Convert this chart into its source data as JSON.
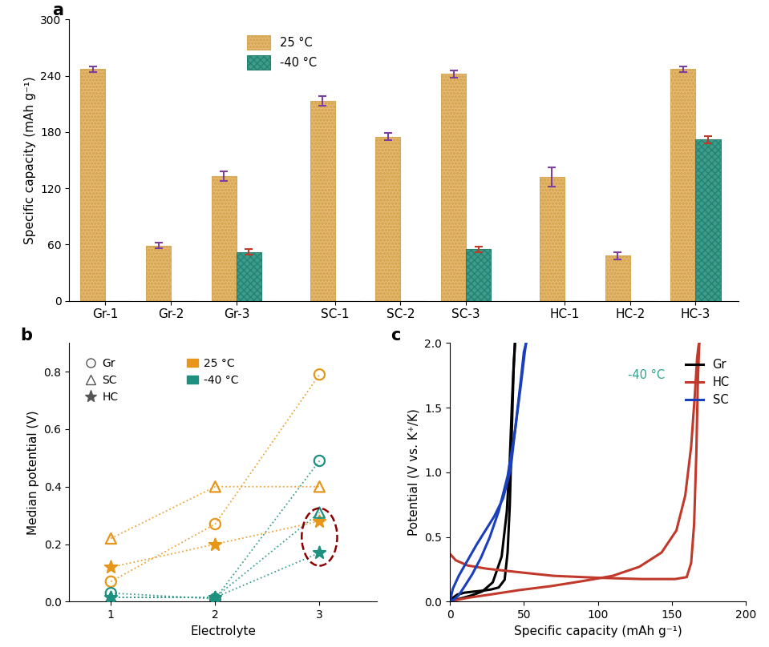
{
  "panel_a": {
    "categories": [
      "Gr-1",
      "Gr-2",
      "Gr-3",
      "SC-1",
      "SC-2",
      "SC-3",
      "HC-1",
      "HC-2",
      "HC-3"
    ],
    "bar25_heights": [
      247,
      59,
      133,
      213,
      175,
      242,
      132,
      48,
      247
    ],
    "bar40_heights": [
      0,
      0,
      52,
      0,
      0,
      55,
      0,
      0,
      172
    ],
    "bar25_errors": [
      3,
      3,
      5,
      5,
      4,
      4,
      10,
      4,
      3
    ],
    "bar40_errors": [
      0,
      0,
      3,
      0,
      0,
      3,
      0,
      0,
      4
    ],
    "color_25": "#E8B870",
    "color_40": "#3A9E8D",
    "error_color_25": "#7B3FA0",
    "error_color_40": "#C0392B",
    "ylabel": "Specific capacity (mAh g⁻¹)",
    "ylim": [
      0,
      300
    ],
    "yticks": [
      0,
      60,
      120,
      180,
      240,
      300
    ]
  },
  "panel_b": {
    "orange_color": "#E8961A",
    "teal_color": "#1E9080",
    "Gr_25": [
      0.07,
      0.27,
      0.79
    ],
    "SC_25": [
      0.22,
      0.4,
      0.4
    ],
    "HC_25": [
      0.12,
      0.2,
      0.28
    ],
    "Gr_40": [
      0.03,
      0.01,
      0.49
    ],
    "SC_40": [
      0.015,
      0.015,
      0.31
    ],
    "HC_40": [
      0.015,
      0.015,
      0.17
    ],
    "electrolytes": [
      1,
      2,
      3
    ],
    "ylabel": "Median potential (V)",
    "xlabel": "Electrolyte",
    "ylim": [
      0,
      0.9
    ],
    "yticks": [
      0.0,
      0.2,
      0.4,
      0.6,
      0.8
    ]
  },
  "panel_c": {
    "xlabel": "Specific capacity (mAh g⁻¹)",
    "ylabel": "Potential (V vs. K⁺/K)",
    "ylim": [
      0,
      2.0
    ],
    "xlim": [
      0,
      200
    ],
    "xticks": [
      0,
      50,
      100,
      150,
      200
    ],
    "yticks": [
      0.0,
      0.5,
      1.0,
      1.5,
      2.0
    ],
    "label_40_color": "#2E9E8A"
  }
}
